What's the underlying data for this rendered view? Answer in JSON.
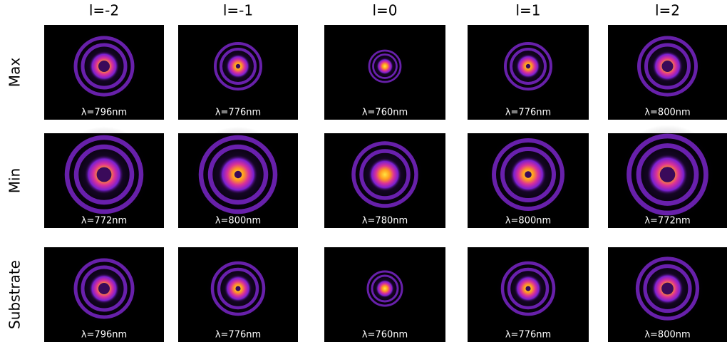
{
  "columns": [
    "l=-2",
    "l=-1",
    "l=0",
    "l=1",
    "l=2"
  ],
  "rows": [
    {
      "label": "Max",
      "cells": [
        "λ=796nm",
        "λ=776nm",
        "λ=760nm",
        "λ=776nm",
        "λ=800nm"
      ]
    },
    {
      "label": "Min",
      "cells": [
        "λ=772nm",
        "λ=800nm",
        "λ=780nm",
        "λ=800nm",
        "λ=772nm"
      ]
    },
    {
      "label": "Substrate",
      "cells": [
        "λ=796nm",
        "λ=776nm",
        "λ=760nm",
        "λ=776nm",
        "λ=800nm"
      ]
    }
  ]
}
